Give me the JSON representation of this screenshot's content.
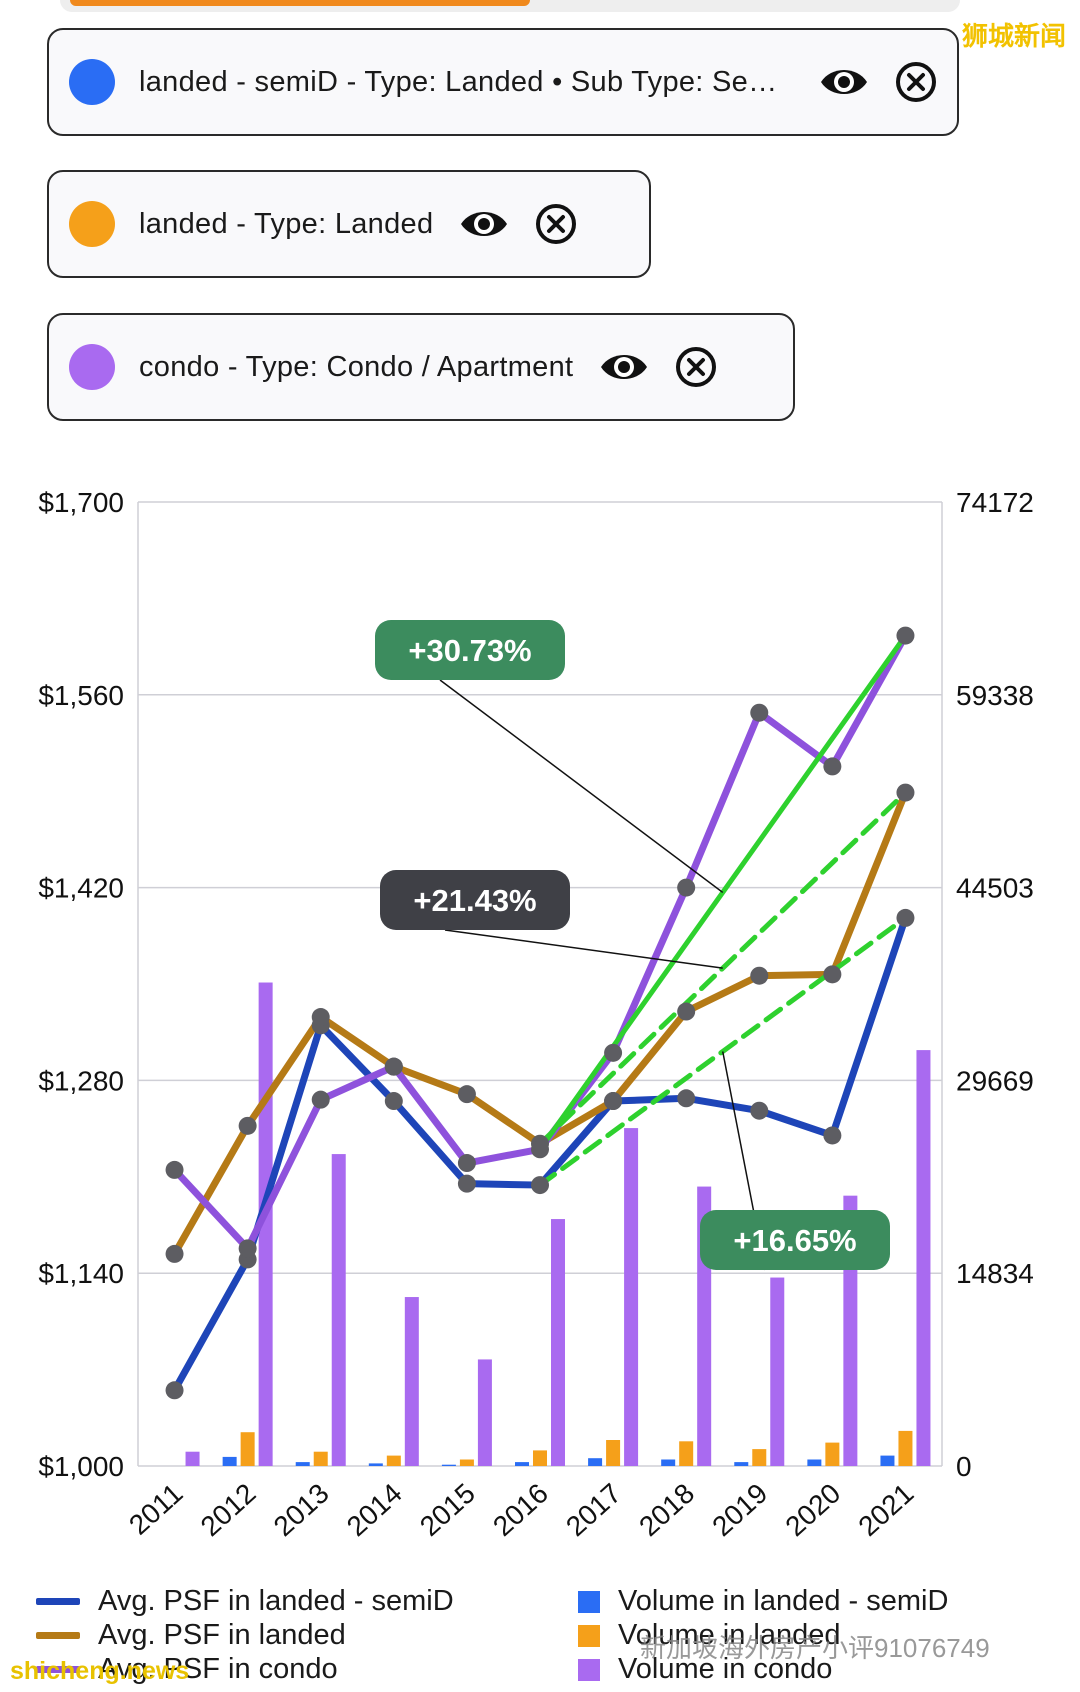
{
  "watermarks": {
    "top_right": "狮城新闻",
    "bottom_left": "shicheng.news",
    "bottom_right": "新加坡海外房产小评91076749"
  },
  "filters": [
    {
      "label": "landed  - semiD  - Type: Landed • Sub Type: Sem...",
      "color": "#2a6df4",
      "icon_show": "eye-icon",
      "icon_remove": "close-circle-icon"
    },
    {
      "label": "landed  - Type: Landed",
      "color": "#f5a01a",
      "icon_show": "eye-icon",
      "icon_remove": "close-circle-icon"
    },
    {
      "label": "condo  - Type: Condo / Apartment",
      "color": "#a96af0",
      "icon_show": "eye-icon",
      "icon_remove": "close-circle-icon"
    }
  ],
  "chart_data": {
    "type": "line",
    "categories": [
      "2011",
      "2012",
      "2013",
      "2014",
      "2015",
      "2016",
      "2017",
      "2018",
      "2019",
      "2020",
      "2021"
    ],
    "left_axis": {
      "ylim": [
        1000,
        1700
      ],
      "ticks": [
        "$1,700",
        "$1,560",
        "$1,420",
        "$1,280",
        "$1,140",
        "$1,000"
      ]
    },
    "right_axis": {
      "ylim": [
        0,
        74172
      ],
      "ticks": [
        "74172",
        "59338",
        "44503",
        "29669",
        "14834",
        "0"
      ]
    },
    "series": [
      {
        "name": "Avg. PSF in landed  - semiD",
        "axis": "left",
        "kind": "line",
        "color": "#1e45b8",
        "values": [
          1055,
          1150,
          1320,
          1265,
          1205,
          1204,
          1265,
          1267,
          1258,
          1240,
          1398
        ]
      },
      {
        "name": "Avg. PSF in landed",
        "axis": "left",
        "kind": "line",
        "color": "#b57a16",
        "values": [
          1154,
          1247,
          1326,
          1290,
          1270,
          1234,
          1265,
          1330,
          1356,
          1357,
          1489
        ]
      },
      {
        "name": "Avg. PSF in condo",
        "axis": "left",
        "kind": "line",
        "color": "#8e52dc",
        "values": [
          1215,
          1158,
          1266,
          1290,
          1220,
          1230,
          1300,
          1420,
          1547,
          1508,
          1603
        ]
      },
      {
        "name": "Volume in landed  - semiD",
        "axis": "right",
        "kind": "bar",
        "color": "#2a6df4",
        "values": [
          0,
          700,
          300,
          200,
          100,
          300,
          600,
          500,
          300,
          500,
          800
        ]
      },
      {
        "name": "Volume in landed",
        "axis": "right",
        "kind": "bar",
        "color": "#f5a01a",
        "values": [
          0,
          2600,
          1100,
          800,
          500,
          1200,
          2000,
          1900,
          1300,
          1800,
          2700
        ]
      },
      {
        "name": "Volume in condo",
        "axis": "right",
        "kind": "bar",
        "color": "#a96af0",
        "values": [
          1100,
          37200,
          24000,
          13000,
          8200,
          19000,
          26000,
          21500,
          14500,
          20800,
          32000
        ]
      }
    ],
    "trend_lines": [
      {
        "from": "2016",
        "to": "2021",
        "series": 2,
        "color": "#2ed12e",
        "dashed": false
      },
      {
        "from": "2016",
        "to": "2021",
        "series": 1,
        "color": "#2ed12e",
        "dashed": true
      },
      {
        "from": "2016",
        "to": "2021",
        "series": 0,
        "color": "#2ed12e",
        "dashed": true
      }
    ],
    "annotations": [
      {
        "text": "+30.73%",
        "bg": "#3c8c5e",
        "series": 2
      },
      {
        "text": "+21.43%",
        "bg": "#3f4046",
        "series": 1
      },
      {
        "text": "+16.65%",
        "bg": "#3c8c5e",
        "series": 0
      }
    ],
    "grid": true,
    "legend_position": "bottom"
  }
}
